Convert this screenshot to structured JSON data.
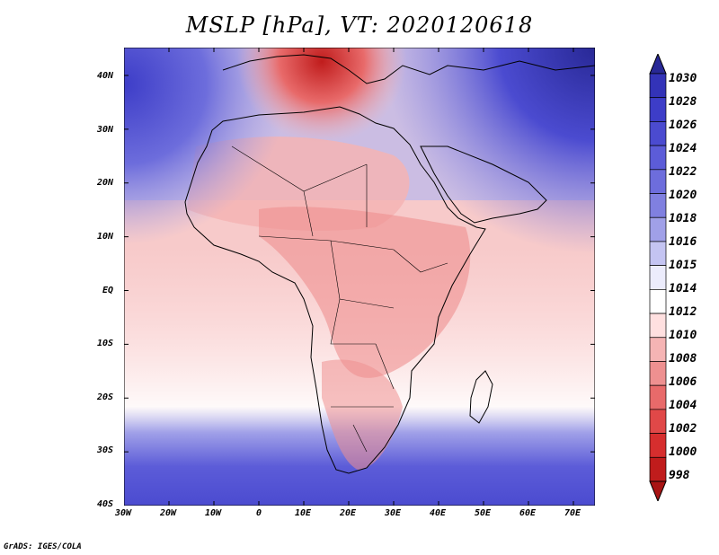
{
  "title": "MSLP [hPa], VT: 2020120618",
  "credit": "GrADS: IGES/COLA",
  "map": {
    "lat_labels": [
      "40N",
      "30N",
      "20N",
      "10N",
      "EQ",
      "10S",
      "20S",
      "30S",
      "40S"
    ],
    "lon_labels": [
      "30W",
      "20W",
      "10W",
      "0",
      "10E",
      "20E",
      "30E",
      "40E",
      "50E",
      "60E",
      "70E"
    ]
  },
  "colorbar": {
    "levels": [
      "1030",
      "1028",
      "1026",
      "1024",
      "1022",
      "1020",
      "1018",
      "1016",
      "1015",
      "1014",
      "1012",
      "1010",
      "1008",
      "1006",
      "1004",
      "1002",
      "1000",
      "998"
    ],
    "colors": [
      "#282896",
      "#3333b8",
      "#3d3dc8",
      "#4b4bd0",
      "#5c5cd8",
      "#6d6ddc",
      "#8080e0",
      "#a0a0e8",
      "#c4c4f2",
      "#ececfc",
      "#ffffff",
      "#ffe0e0",
      "#f5b4b4",
      "#ee9090",
      "#e86a6a",
      "#e04848",
      "#d62e2e",
      "#c01c1c",
      "#a81414"
    ]
  }
}
